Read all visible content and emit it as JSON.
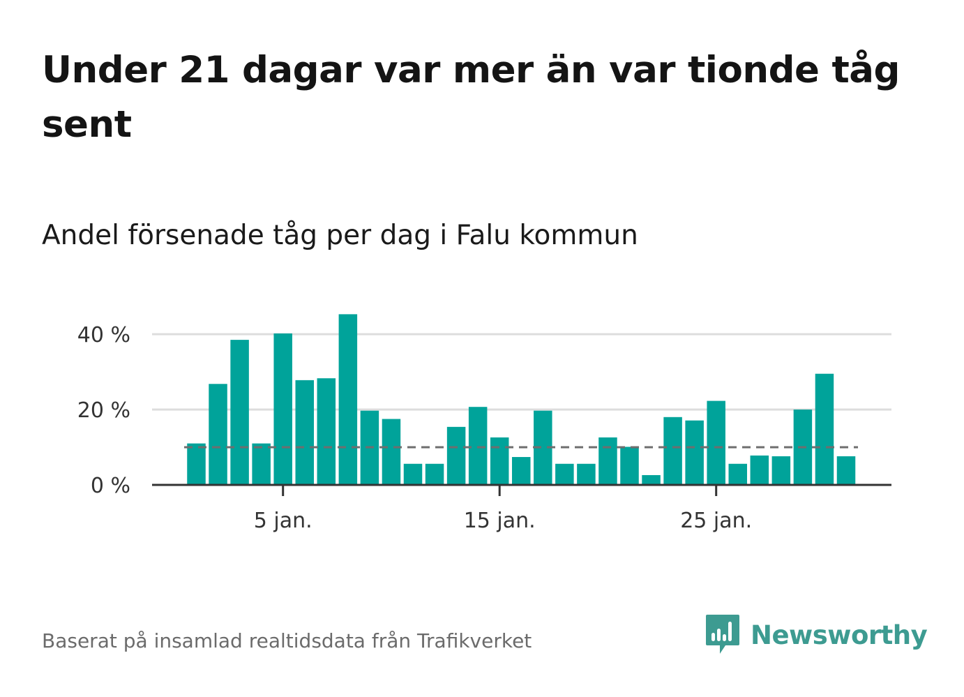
{
  "title": "Under 21 dagar var mer än var tionde tåg sent",
  "subtitle": "Andel försenade tåg per dag i Falu kommun",
  "source": "Baserat på insamlad realtidsdata från Trafikverket",
  "brand": {
    "name": "Newsworthy",
    "icon": "newsworthy-logo-icon",
    "color": "#3d9b91"
  },
  "chart_data": {
    "type": "bar",
    "title": "Andel försenade tåg per dag i Falu kommun",
    "x": [
      1,
      2,
      3,
      4,
      5,
      6,
      7,
      8,
      9,
      10,
      11,
      12,
      13,
      14,
      15,
      16,
      17,
      18,
      19,
      20,
      21,
      22,
      23,
      24,
      25,
      26,
      27,
      28,
      29,
      30,
      31
    ],
    "values": [
      11,
      26.8,
      38.5,
      11,
      40.2,
      27.8,
      28.3,
      45.3,
      19.7,
      17.5,
      5.6,
      5.6,
      15.4,
      20.7,
      12.6,
      7.4,
      19.7,
      5.6,
      5.6,
      12.6,
      10.1,
      2.6,
      18,
      17.1,
      22.3,
      5.6,
      7.8,
      7.6,
      20,
      29.5,
      7.6
    ],
    "xticks": [
      5,
      15,
      25
    ],
    "xtick_labels": [
      "5 jan.",
      "15 jan.",
      "25 jan."
    ],
    "yticks": [
      0,
      20,
      40
    ],
    "ytick_labels": [
      "0 %",
      "20 %",
      "40 %"
    ],
    "ylim": [
      0,
      45.3
    ],
    "threshold": 10,
    "grid": true,
    "colors": {
      "bar": "#00a39a",
      "grid": "#dddddd",
      "axis": "#333333",
      "threshold": "#6e6e6e"
    }
  }
}
